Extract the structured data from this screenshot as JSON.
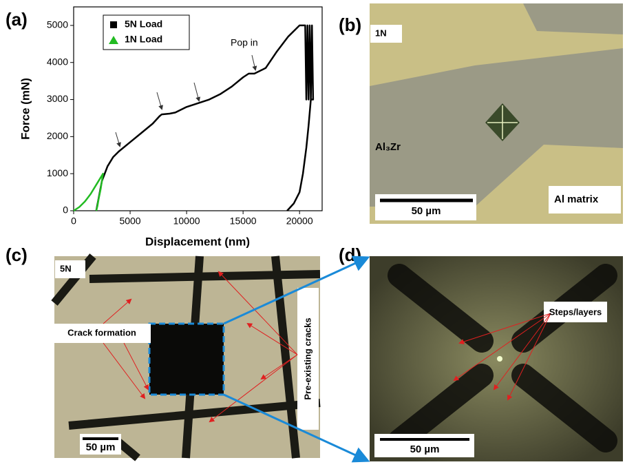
{
  "panel_labels": [
    "(a)",
    "(b)",
    "(c)",
    "(d)"
  ],
  "chart_data": {
    "type": "line",
    "xlabel": "Displacement (nm)",
    "ylabel": "Force (mN)",
    "annotation": "Pop in",
    "xlim": [
      0,
      22000
    ],
    "ylim": [
      0,
      5500
    ],
    "xticks": [
      0,
      5000,
      10000,
      15000,
      20000
    ],
    "yticks": [
      0,
      1000,
      2000,
      3000,
      4000,
      5000
    ],
    "legend": "upper-left",
    "series": [
      {
        "name": "5N Load",
        "color": "#000000",
        "marker": "square",
        "x": [
          2000,
          2500,
          3000,
          3500,
          4000,
          5000,
          6000,
          7000,
          7600,
          7800,
          8500,
          9000,
          10000,
          11000,
          12000,
          13000,
          14000,
          15000,
          15500,
          16000,
          17000,
          18000,
          19000,
          20000,
          20500,
          20600,
          20700,
          20800,
          20900,
          21000,
          21100,
          21200,
          21000,
          20800,
          20600,
          20300,
          20000,
          19500,
          18900
        ],
        "values": [
          0,
          800,
          1200,
          1450,
          1600,
          1850,
          2100,
          2350,
          2550,
          2600,
          2620,
          2650,
          2800,
          2900,
          3000,
          3150,
          3350,
          3600,
          3700,
          3700,
          3850,
          4300,
          4700,
          5000,
          5000,
          3000,
          5000,
          3000,
          5000,
          3000,
          5000,
          3000,
          3000,
          2300,
          1700,
          1000,
          500,
          200,
          0
        ]
      },
      {
        "name": "1N Load",
        "color": "#22bb22",
        "marker": "triangle",
        "x": [
          0,
          500,
          1000,
          1500,
          2000,
          2400,
          2600,
          2400,
          2200,
          2100,
          2000
        ],
        "values": [
          0,
          100,
          250,
          450,
          700,
          900,
          1000,
          600,
          300,
          120,
          0
        ]
      }
    ]
  },
  "panel_b": {
    "inset_label": "1N",
    "phase": "Al₃Zr",
    "matrix": "Al matrix",
    "scale_bar": "50 µm"
  },
  "panel_c": {
    "inset_label": "5N",
    "crack_formation": "Crack formation",
    "pre_existing": "Pre-existing cracks",
    "scale_bar": "50 µm"
  },
  "panel_d": {
    "annotation": "Steps/layers",
    "scale_bar": "50 µm"
  }
}
